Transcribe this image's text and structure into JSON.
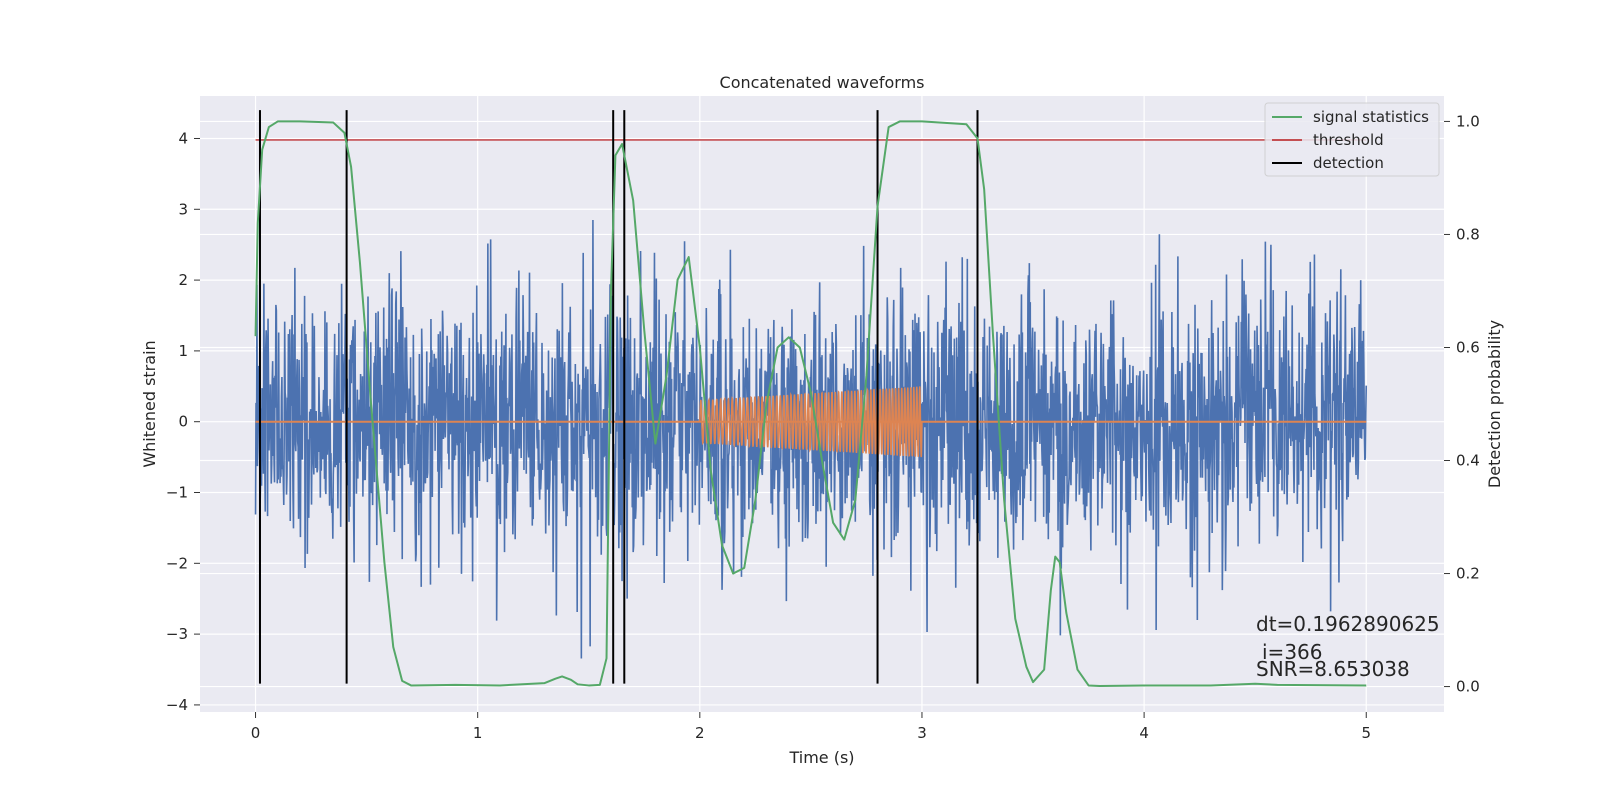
{
  "chart_data": {
    "type": "line",
    "title": "Concatenated waveforms",
    "xlabel": "Time (s)",
    "ylabel": "Whitened strain",
    "ylabel_right": "Detection probability",
    "xlim": [
      -0.25,
      5.35
    ],
    "ylim": [
      -4.1,
      4.6
    ],
    "ylim_right": [
      -0.045,
      1.045
    ],
    "xticks": [
      0,
      1,
      2,
      3,
      4,
      5
    ],
    "yticks": [
      -4,
      -3,
      -2,
      -1,
      0,
      1,
      2,
      3,
      4
    ],
    "yticks_right": [
      0.0,
      0.2,
      0.4,
      0.6,
      0.8,
      1.0
    ],
    "xtick_labels": [
      "0",
      "1",
      "2",
      "3",
      "4",
      "5"
    ],
    "ytick_labels": [
      "−4",
      "−3",
      "−2",
      "−1",
      "0",
      "1",
      "2",
      "3",
      "4"
    ],
    "ytick_right_labels": [
      "0.0",
      "0.2",
      "0.4",
      "0.6",
      "0.8",
      "1.0"
    ],
    "grid": true,
    "legend_position": "top-right",
    "colors": {
      "strain": "#4c72b0",
      "waveform": "#dd8452",
      "signal_statistics": "#55a868",
      "threshold": "#c44e52",
      "detection": "#000000",
      "plot_bg": "#eaeaf2",
      "grid": "#ffffff"
    },
    "series": [
      {
        "name": "strain",
        "axis": "left",
        "description": "whitened detector noise, dense random trace, roughly within -3.7..4.3",
        "x_range": [
          0,
          5
        ],
        "envelope": [
          -2.6,
          2.6
        ]
      },
      {
        "name": "waveform",
        "axis": "left",
        "x_range": [
          0,
          5
        ],
        "chirp_x_range": [
          2.0,
          3.0
        ],
        "chirp_amplitude": [
          0.3,
          0.5
        ]
      },
      {
        "name": "signal statistics",
        "axis": "right",
        "x": [
          0,
          0.01,
          0.03,
          0.06,
          0.1,
          0.2,
          0.35,
          0.4,
          0.43,
          0.47,
          0.52,
          0.58,
          0.62,
          0.66,
          0.7,
          0.9,
          1.1,
          1.3,
          1.35,
          1.38,
          1.42,
          1.45,
          1.5,
          1.55,
          1.58,
          1.6,
          1.62,
          1.65,
          1.7,
          1.75,
          1.8,
          1.85,
          1.9,
          1.95,
          2.0,
          2.05,
          2.1,
          2.15,
          2.2,
          2.25,
          2.3,
          2.35,
          2.4,
          2.45,
          2.5,
          2.55,
          2.6,
          2.65,
          2.7,
          2.75,
          2.8,
          2.85,
          2.9,
          3.0,
          3.2,
          3.25,
          3.28,
          3.32,
          3.37,
          3.42,
          3.47,
          3.5,
          3.55,
          3.58,
          3.6,
          3.62,
          3.65,
          3.7,
          3.75,
          3.8,
          4.0,
          4.3,
          4.5,
          4.6,
          5.0
        ],
        "y": [
          0.62,
          0.82,
          0.95,
          0.99,
          1.0,
          1.0,
          0.998,
          0.98,
          0.92,
          0.75,
          0.5,
          0.22,
          0.07,
          0.01,
          0.002,
          0.003,
          0.002,
          0.006,
          0.014,
          0.018,
          0.012,
          0.004,
          0.002,
          0.003,
          0.05,
          0.7,
          0.94,
          0.96,
          0.86,
          0.63,
          0.43,
          0.55,
          0.72,
          0.76,
          0.6,
          0.38,
          0.25,
          0.2,
          0.21,
          0.33,
          0.5,
          0.6,
          0.618,
          0.6,
          0.52,
          0.4,
          0.29,
          0.26,
          0.33,
          0.55,
          0.85,
          0.99,
          1.0,
          1.0,
          0.995,
          0.97,
          0.88,
          0.62,
          0.33,
          0.12,
          0.035,
          0.008,
          0.03,
          0.17,
          0.23,
          0.22,
          0.13,
          0.03,
          0.002,
          0.001,
          0.002,
          0.002,
          0.005,
          0.003,
          0.002
        ]
      },
      {
        "name": "threshold",
        "axis": "left",
        "x": [
          0,
          5
        ],
        "y": [
          3.98,
          3.98
        ]
      },
      {
        "name": "detection",
        "axis": "left",
        "type": "vlines",
        "x": [
          0.02,
          0.41,
          1.61,
          1.66,
          2.8,
          3.25
        ],
        "y_range": [
          -3.7,
          4.4
        ]
      }
    ],
    "legend": [
      "signal statistics",
      "threshold",
      "detection"
    ],
    "annotations": [
      "dt=0.1962890625",
      "i=366",
      "SNR=8.653038"
    ]
  }
}
